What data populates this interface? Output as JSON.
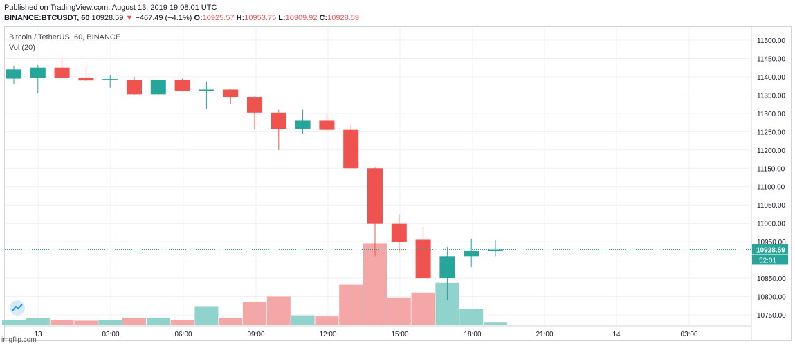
{
  "header": {
    "published": "Published on TradingView.com, August 13, 2019 19:08:01 UTC",
    "symbol": "BINANCE:BTCUSDT, 60",
    "last": "10928.59",
    "change_arrow": "▼",
    "change": "−467.49 (−4.1%)",
    "o_label": "O:",
    "o_value": "10925.57",
    "h_label": "H:",
    "h_value": "10953.75",
    "l_label": "L:",
    "l_value": "10909.92",
    "c_label": "C:",
    "c_value": "10928.59"
  },
  "legend": {
    "title": "Bitcoin / TetherUS, 60, BINANCE",
    "volume": "Vol (20)"
  },
  "watermark": "imgflip.com",
  "colors": {
    "up": "#26a69a",
    "down": "#ef5350",
    "up_vol": "#8fd3cc",
    "down_vol": "#f4a7a6",
    "grid": "#eef0f3",
    "price_line": "#26a69a"
  },
  "chart_data": {
    "type": "candlestick",
    "x_tick_labels": [
      "13",
      "03:00",
      "06:00",
      "09:00",
      "12:00",
      "15:00",
      "18:00",
      "21:00",
      "14",
      "03:00"
    ],
    "y_tick_labels": [
      "11500.00",
      "11450.00",
      "11400.00",
      "11350.00",
      "11300.00",
      "11250.00",
      "11200.00",
      "11150.00",
      "11100.00",
      "11050.00",
      "11000.00",
      "10950.00",
      "10900.00",
      "10850.00",
      "10800.00",
      "10750.00"
    ],
    "ylim": [
      10725,
      11525
    ],
    "last_price_label": "10928.59",
    "countdown_label": "52:01",
    "candles": [
      {
        "o": 11395,
        "h": 11430,
        "l": 11380,
        "c": 11420
      },
      {
        "o": 11398,
        "h": 11432,
        "l": 11355,
        "c": 11425
      },
      {
        "o": 11425,
        "h": 11455,
        "l": 11395,
        "c": 11398
      },
      {
        "o": 11398,
        "h": 11430,
        "l": 11385,
        "c": 11390
      },
      {
        "o": 11392,
        "h": 11405,
        "l": 11370,
        "c": 11394
      },
      {
        "o": 11392,
        "h": 11400,
        "l": 11350,
        "c": 11352
      },
      {
        "o": 11352,
        "h": 11392,
        "l": 11348,
        "c": 11392
      },
      {
        "o": 11392,
        "h": 11395,
        "l": 11360,
        "c": 11362
      },
      {
        "o": 11362,
        "h": 11387,
        "l": 11312,
        "c": 11365
      },
      {
        "o": 11365,
        "h": 11367,
        "l": 11325,
        "c": 11345
      },
      {
        "o": 11345,
        "h": 11347,
        "l": 11255,
        "c": 11302
      },
      {
        "o": 11302,
        "h": 11310,
        "l": 11200,
        "c": 11258
      },
      {
        "o": 11258,
        "h": 11310,
        "l": 11245,
        "c": 11280
      },
      {
        "o": 11280,
        "h": 11300,
        "l": 11250,
        "c": 11255
      },
      {
        "o": 11255,
        "h": 11270,
        "l": 11150,
        "c": 11150
      },
      {
        "o": 11150,
        "h": 11152,
        "l": 10910,
        "c": 11000
      },
      {
        "o": 11000,
        "h": 11025,
        "l": 10920,
        "c": 10950
      },
      {
        "o": 10955,
        "h": 10990,
        "l": 10850,
        "c": 10850
      },
      {
        "o": 10850,
        "h": 10935,
        "l": 10790,
        "c": 10910
      },
      {
        "o": 10910,
        "h": 10958,
        "l": 10880,
        "c": 10925
      },
      {
        "o": 10925.57,
        "h": 10953.75,
        "l": 10909.92,
        "c": 10928.59
      }
    ],
    "volume": [
      9,
      13,
      10,
      8,
      9,
      14,
      14,
      9,
      38,
      14,
      47,
      58,
      19,
      17,
      82,
      168,
      56,
      66,
      86,
      32,
      4
    ],
    "volume_max": 200
  }
}
